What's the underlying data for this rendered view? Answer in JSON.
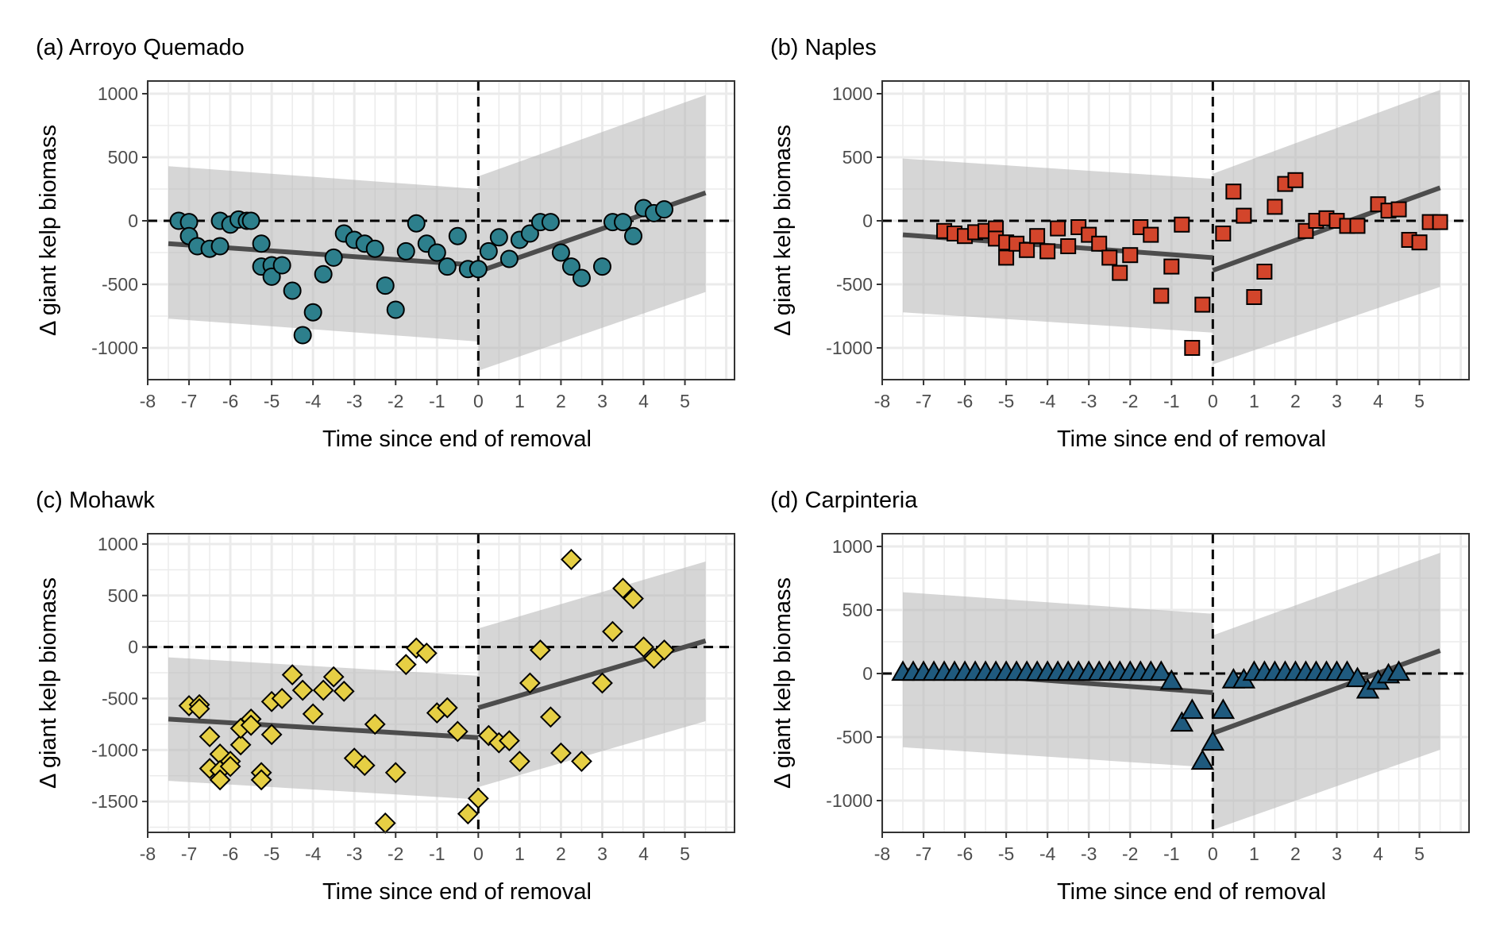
{
  "chart_data": [
    {
      "type": "scatter",
      "title": "(a) Arroyo Quemado",
      "xlabel": "Time since end of removal",
      "ylabel": "Δ giant kelp biomass",
      "xlim": [
        -8,
        6.2
      ],
      "ylim": [
        -1250,
        1100
      ],
      "xticks": [
        "-8",
        "-7",
        "-6",
        "-5",
        "-4",
        "-3",
        "-2",
        "-1",
        "0",
        "1",
        "2",
        "3",
        "4",
        "5"
      ],
      "yticks": [
        "1000",
        "500",
        "0",
        "-500",
        "-1000"
      ],
      "color": "#2d7f8c",
      "marker": "circle",
      "points": [
        [
          -7.25,
          0
        ],
        [
          -7,
          -10
        ],
        [
          -7,
          -120
        ],
        [
          -6.8,
          -200
        ],
        [
          -6.5,
          -220
        ],
        [
          -6.25,
          -200
        ],
        [
          -6.25,
          0
        ],
        [
          -6,
          -30
        ],
        [
          -5.8,
          10
        ],
        [
          -5.6,
          0
        ],
        [
          -5.5,
          0
        ],
        [
          -5.25,
          -180
        ],
        [
          -5.25,
          -360
        ],
        [
          -5,
          -350
        ],
        [
          -5,
          -440
        ],
        [
          -4.75,
          -350
        ],
        [
          -4.5,
          -550
        ],
        [
          -4.25,
          -900
        ],
        [
          -4,
          -720
        ],
        [
          -3.75,
          -420
        ],
        [
          -3.5,
          -290
        ],
        [
          -3.25,
          -100
        ],
        [
          -3,
          -150
        ],
        [
          -2.75,
          -180
        ],
        [
          -2.5,
          -220
        ],
        [
          -2.25,
          -510
        ],
        [
          -2,
          -700
        ],
        [
          -1.75,
          -240
        ],
        [
          -1.5,
          -20
        ],
        [
          -1.25,
          -180
        ],
        [
          -1,
          -250
        ],
        [
          -0.75,
          -360
        ],
        [
          -0.5,
          -120
        ],
        [
          -0.25,
          -380
        ],
        [
          0,
          -380
        ],
        [
          0.25,
          -240
        ],
        [
          0.5,
          -130
        ],
        [
          0.75,
          -300
        ],
        [
          1,
          -150
        ],
        [
          1.25,
          -100
        ],
        [
          1.5,
          -10
        ],
        [
          1.75,
          -10
        ],
        [
          2,
          -250
        ],
        [
          2.25,
          -360
        ],
        [
          2.5,
          -450
        ],
        [
          3,
          -360
        ],
        [
          3.25,
          -10
        ],
        [
          3.5,
          -10
        ],
        [
          3.75,
          -120
        ],
        [
          4,
          100
        ],
        [
          4.25,
          60
        ],
        [
          4.5,
          90
        ]
      ],
      "fit_before": {
        "x": [
          -7.5,
          0
        ],
        "y": [
          -180,
          -350
        ]
      },
      "fit_after": {
        "x": [
          0,
          5.5
        ],
        "y": [
          -400,
          220
        ]
      },
      "band_before": {
        "x": [
          -7.5,
          0
        ],
        "upper": [
          430,
          250
        ],
        "lower": [
          -770,
          -950
        ]
      },
      "band_after": {
        "x": [
          0,
          5.5
        ],
        "upper": [
          350,
          990
        ],
        "lower": [
          -1180,
          -560
        ]
      }
    },
    {
      "type": "scatter",
      "title": "(b) Naples",
      "xlabel": "Time since end of removal",
      "ylabel": "Δ giant kelp biomass",
      "xlim": [
        -8,
        6.2
      ],
      "ylim": [
        -1250,
        1100
      ],
      "xticks": [
        "-8",
        "-7",
        "-6",
        "-5",
        "-4",
        "-3",
        "-2",
        "-1",
        "0",
        "1",
        "2",
        "3",
        "4",
        "5"
      ],
      "yticks": [
        "1000",
        "500",
        "0",
        "-500",
        "-1000"
      ],
      "color": "#d3452b",
      "marker": "square",
      "points": [
        [
          -6.5,
          -80
        ],
        [
          -6.25,
          -100
        ],
        [
          -6,
          -120
        ],
        [
          -5.75,
          -90
        ],
        [
          -5.5,
          -80
        ],
        [
          -5.25,
          -60
        ],
        [
          -5.25,
          -140
        ],
        [
          -5,
          -290
        ],
        [
          -5,
          -170
        ],
        [
          -4.75,
          -180
        ],
        [
          -4.5,
          -230
        ],
        [
          -4.25,
          -120
        ],
        [
          -4,
          -240
        ],
        [
          -3.75,
          -60
        ],
        [
          -3.5,
          -200
        ],
        [
          -3.25,
          -50
        ],
        [
          -3,
          -110
        ],
        [
          -2.75,
          -180
        ],
        [
          -2.5,
          -290
        ],
        [
          -2.25,
          -410
        ],
        [
          -2,
          -270
        ],
        [
          -1.75,
          -50
        ],
        [
          -1.5,
          -110
        ],
        [
          -1.25,
          -590
        ],
        [
          -1,
          -360
        ],
        [
          -0.75,
          -30
        ],
        [
          -0.5,
          -1000
        ],
        [
          -0.25,
          -660
        ],
        [
          0.25,
          -100
        ],
        [
          0.5,
          230
        ],
        [
          0.75,
          40
        ],
        [
          1,
          -600
        ],
        [
          1.25,
          -400
        ],
        [
          1.5,
          110
        ],
        [
          1.75,
          290
        ],
        [
          2,
          320
        ],
        [
          2.25,
          -80
        ],
        [
          2.5,
          0
        ],
        [
          2.75,
          20
        ],
        [
          3,
          0
        ],
        [
          3.25,
          -40
        ],
        [
          3.5,
          -40
        ],
        [
          4,
          130
        ],
        [
          4.25,
          80
        ],
        [
          4.5,
          90
        ],
        [
          4.75,
          -150
        ],
        [
          5,
          -170
        ],
        [
          5.25,
          -10
        ],
        [
          5.5,
          -10
        ]
      ],
      "fit_before": {
        "x": [
          -7.5,
          0
        ],
        "y": [
          -110,
          -290
        ]
      },
      "fit_after": {
        "x": [
          0,
          5.5
        ],
        "y": [
          -390,
          260
        ]
      },
      "band_before": {
        "x": [
          -7.5,
          0
        ],
        "upper": [
          490,
          330
        ],
        "lower": [
          -720,
          -880
        ]
      },
      "band_after": {
        "x": [
          0,
          5.5
        ],
        "upper": [
          370,
          1030
        ],
        "lower": [
          -1130,
          -520
        ]
      }
    },
    {
      "type": "scatter",
      "title": "(c) Mohawk",
      "xlabel": "Time since end of removal",
      "ylabel": "Δ giant kelp biomass",
      "xlim": [
        -8,
        6.2
      ],
      "ylim": [
        -1800,
        1100
      ],
      "xticks": [
        "-8",
        "-7",
        "-6",
        "-5",
        "-4",
        "-3",
        "-2",
        "-1",
        "0",
        "1",
        "2",
        "3",
        "4",
        "5"
      ],
      "yticks": [
        "1000",
        "500",
        "0",
        "-500",
        "-1000",
        "-1500"
      ],
      "color": "#e6cf44",
      "marker": "diamond",
      "points": [
        [
          -7,
          -570
        ],
        [
          -6.75,
          -560
        ],
        [
          -6.75,
          -600
        ],
        [
          -6.5,
          -870
        ],
        [
          -6.5,
          -1180
        ],
        [
          -6.25,
          -1040
        ],
        [
          -6.25,
          -1200
        ],
        [
          -6.25,
          -1290
        ],
        [
          -6,
          -1110
        ],
        [
          -6,
          -1160
        ],
        [
          -5.75,
          -950
        ],
        [
          -5.75,
          -790
        ],
        [
          -5.5,
          -700
        ],
        [
          -5.5,
          -760
        ],
        [
          -5.25,
          -1220
        ],
        [
          -5.25,
          -1290
        ],
        [
          -5,
          -530
        ],
        [
          -5,
          -850
        ],
        [
          -4.75,
          -500
        ],
        [
          -4.5,
          -270
        ],
        [
          -4.25,
          -420
        ],
        [
          -4,
          -650
        ],
        [
          -3.75,
          -420
        ],
        [
          -3.5,
          -290
        ],
        [
          -3.25,
          -430
        ],
        [
          -3,
          -1080
        ],
        [
          -2.75,
          -1150
        ],
        [
          -2.5,
          -750
        ],
        [
          -2.25,
          -1710
        ],
        [
          -2,
          -1220
        ],
        [
          -1.75,
          -170
        ],
        [
          -1.5,
          -10
        ],
        [
          -1.25,
          -60
        ],
        [
          -1,
          -640
        ],
        [
          -0.75,
          -590
        ],
        [
          -0.5,
          -820
        ],
        [
          -0.25,
          -1620
        ],
        [
          0,
          -1470
        ],
        [
          0.25,
          -860
        ],
        [
          0.5,
          -930
        ],
        [
          0.75,
          -910
        ],
        [
          1,
          -1110
        ],
        [
          1.25,
          -350
        ],
        [
          1.5,
          -30
        ],
        [
          1.75,
          -680
        ],
        [
          2,
          -1030
        ],
        [
          2.25,
          850
        ],
        [
          2.5,
          -1110
        ],
        [
          3,
          -350
        ],
        [
          3.25,
          150
        ],
        [
          3.5,
          570
        ],
        [
          3.75,
          470
        ],
        [
          4,
          0
        ],
        [
          4.25,
          -110
        ],
        [
          4.5,
          -30
        ]
      ],
      "fit_before": {
        "x": [
          -7.5,
          0
        ],
        "y": [
          -700,
          -880
        ]
      },
      "fit_after": {
        "x": [
          0,
          5.5
        ],
        "y": [
          -590,
          60
        ]
      },
      "band_before": {
        "x": [
          -7.5,
          0
        ],
        "upper": [
          -100,
          -280
        ],
        "lower": [
          -1300,
          -1480
        ]
      },
      "band_after": {
        "x": [
          0,
          5.5
        ],
        "upper": [
          180,
          830
        ],
        "lower": [
          -1360,
          -720
        ]
      }
    },
    {
      "type": "scatter",
      "title": "(d) Carpinteria",
      "xlabel": "Time since end of removal",
      "ylabel": "Δ giant kelp biomass",
      "xlim": [
        -8,
        6.2
      ],
      "ylim": [
        -1250,
        1100
      ],
      "xticks": [
        "-8",
        "-7",
        "-6",
        "-5",
        "-4",
        "-3",
        "-2",
        "-1",
        "0",
        "1",
        "2",
        "3",
        "4",
        "5"
      ],
      "yticks": [
        "1000",
        "500",
        "0",
        "-500",
        "-1000"
      ],
      "color": "#1f5a7e",
      "marker": "triangle",
      "points": [
        [
          -7.5,
          10
        ],
        [
          -7.25,
          10
        ],
        [
          -7,
          10
        ],
        [
          -6.75,
          10
        ],
        [
          -6.5,
          10
        ],
        [
          -6.25,
          10
        ],
        [
          -6,
          10
        ],
        [
          -5.75,
          10
        ],
        [
          -5.5,
          10
        ],
        [
          -5.25,
          10
        ],
        [
          -5,
          10
        ],
        [
          -4.75,
          10
        ],
        [
          -4.5,
          10
        ],
        [
          -4.25,
          10
        ],
        [
          -4,
          10
        ],
        [
          -3.75,
          10
        ],
        [
          -3.5,
          10
        ],
        [
          -3.25,
          10
        ],
        [
          -3,
          10
        ],
        [
          -2.75,
          10
        ],
        [
          -2.5,
          10
        ],
        [
          -2.25,
          10
        ],
        [
          -2,
          10
        ],
        [
          -1.75,
          10
        ],
        [
          -1.5,
          10
        ],
        [
          -1.25,
          10
        ],
        [
          -1,
          -60
        ],
        [
          -0.75,
          -390
        ],
        [
          -0.5,
          -290
        ],
        [
          -0.25,
          -690
        ],
        [
          0,
          -540
        ],
        [
          0.25,
          -290
        ],
        [
          0.5,
          -50
        ],
        [
          0.75,
          -50
        ],
        [
          1,
          10
        ],
        [
          1.25,
          10
        ],
        [
          1.5,
          10
        ],
        [
          1.75,
          10
        ],
        [
          2,
          10
        ],
        [
          2.25,
          10
        ],
        [
          2.5,
          10
        ],
        [
          2.75,
          10
        ],
        [
          3,
          10
        ],
        [
          3.25,
          10
        ],
        [
          3.5,
          -40
        ],
        [
          3.75,
          -130
        ],
        [
          4,
          -60
        ],
        [
          4.25,
          -10
        ],
        [
          4.5,
          10
        ]
      ],
      "fit_before": {
        "x": [
          -7.5,
          0
        ],
        "y": [
          30,
          -150
        ]
      },
      "fit_after": {
        "x": [
          0,
          5.5
        ],
        "y": [
          -470,
          180
        ]
      },
      "band_before": {
        "x": [
          -7.5,
          0
        ],
        "upper": [
          640,
          470
        ],
        "lower": [
          -580,
          -740
        ]
      },
      "band_after": {
        "x": [
          0,
          5.5
        ],
        "upper": [
          300,
          950
        ],
        "lower": [
          -1230,
          -600
        ]
      }
    }
  ]
}
